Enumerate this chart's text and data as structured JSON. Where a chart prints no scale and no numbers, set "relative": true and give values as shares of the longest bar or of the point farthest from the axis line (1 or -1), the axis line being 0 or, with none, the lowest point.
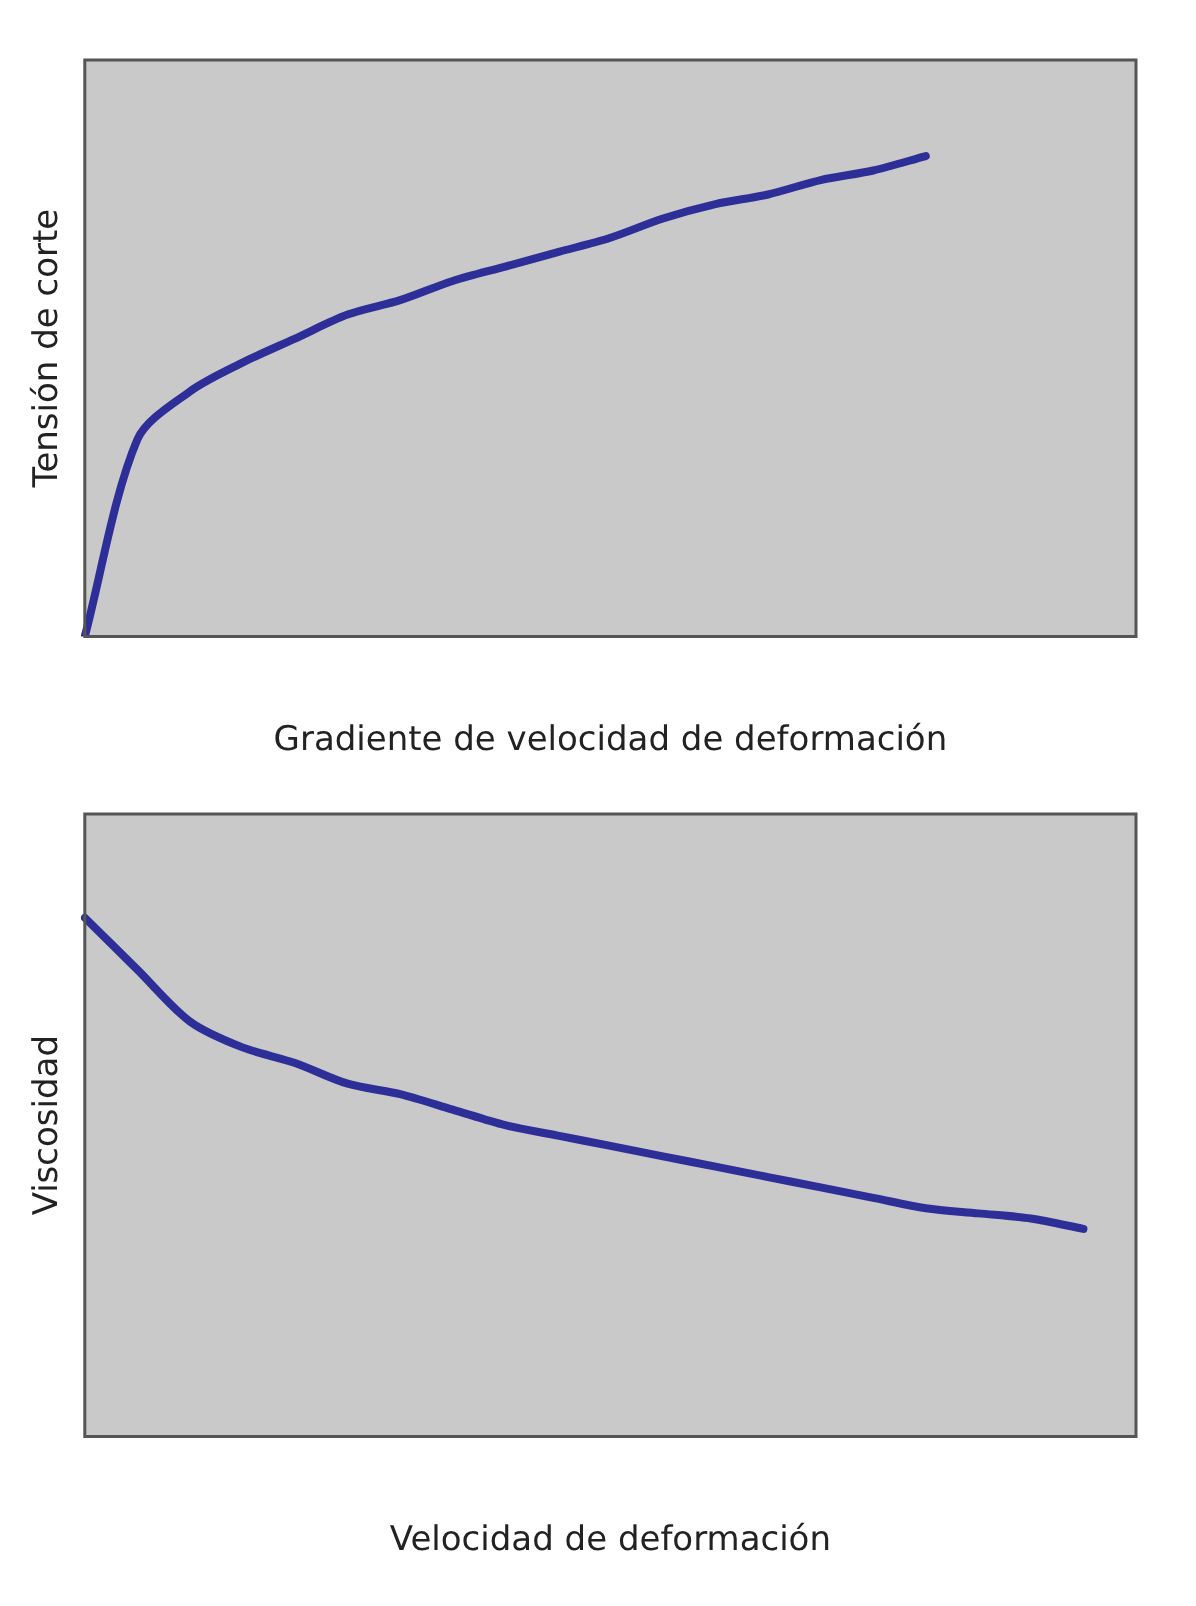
{
  "chart_data": [
    {
      "type": "line",
      "xlabel": "Gradiente de velocidad de deformación",
      "ylabel": "Tensión de corte",
      "relative": true,
      "grid": false,
      "color": "#2e2e99",
      "categories": [
        null,
        null,
        null,
        null,
        null,
        null,
        null,
        null,
        null,
        null,
        null,
        null,
        null,
        null,
        null,
        null,
        null,
        null,
        null,
        null,
        null
      ],
      "values": [
        0,
        0.41,
        0.51,
        0.57,
        0.62,
        0.67,
        0.7,
        0.74,
        0.77,
        0.8,
        0.83,
        0.87,
        0.9,
        0.92,
        0.95,
        0.97,
        1,
        null,
        null,
        null,
        null
      ]
    },
    {
      "type": "line",
      "xlabel": "Velocidad de deformación",
      "ylabel": "Viscosidad",
      "relative": true,
      "grid": false,
      "color": "#2e2e99",
      "categories": [
        null,
        null,
        null,
        null,
        null,
        null,
        null,
        null,
        null,
        null,
        null,
        null,
        null,
        null,
        null,
        null,
        null,
        null,
        null,
        null,
        null
      ],
      "values": [
        1,
        0.9,
        0.8,
        0.75,
        0.72,
        0.68,
        0.66,
        0.63,
        0.6,
        0.58,
        0.56,
        0.54,
        0.52,
        0.5,
        0.48,
        0.46,
        0.44,
        0.43,
        0.42,
        0.4,
        null
      ]
    }
  ]
}
